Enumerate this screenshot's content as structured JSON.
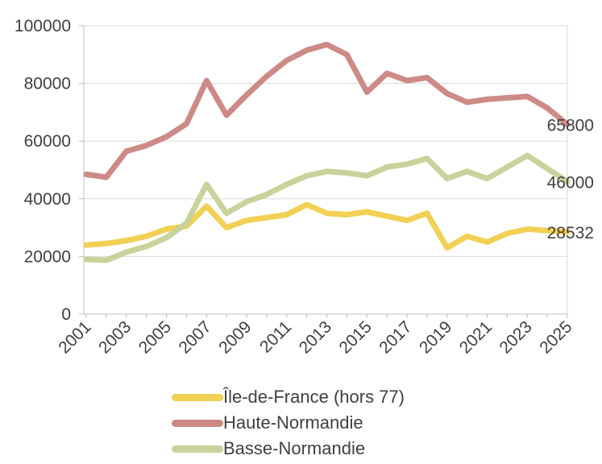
{
  "chart_data": {
    "type": "line",
    "x": [
      2001,
      2002,
      2003,
      2004,
      2005,
      2006,
      2007,
      2008,
      2009,
      2010,
      2011,
      2012,
      2013,
      2014,
      2015,
      2016,
      2017,
      2018,
      2019,
      2020,
      2021,
      2022,
      2023,
      2024,
      2025
    ],
    "series": [
      {
        "name": "Île-de-France (hors 77)",
        "color": "#F2D054",
        "end_label": "28532",
        "values": [
          24000,
          24500,
          25500,
          27000,
          29500,
          30500,
          37500,
          30000,
          32500,
          33500,
          34500,
          38000,
          35000,
          34500,
          35500,
          34000,
          32500,
          35000,
          23000,
          27000,
          25000,
          28000,
          29500,
          29000,
          28532
        ]
      },
      {
        "name": "Haute-Normandie",
        "color": "#CD8A86",
        "end_label": "65800",
        "values": [
          48500,
          47500,
          56500,
          58500,
          61500,
          66000,
          81000,
          69000,
          76000,
          82500,
          88000,
          91500,
          93500,
          90000,
          77000,
          83500,
          81000,
          82000,
          76500,
          73500,
          74500,
          75000,
          75500,
          71500,
          65800
        ]
      },
      {
        "name": "Basse-Normandie",
        "color": "#C7D39A",
        "end_label": "46000",
        "values": [
          19000,
          18700,
          21500,
          23500,
          26500,
          31500,
          45000,
          35000,
          39000,
          41500,
          45000,
          48000,
          49500,
          49000,
          48000,
          51000,
          52000,
          54000,
          47000,
          49500,
          47000,
          51000,
          55000,
          50500,
          46000
        ]
      }
    ],
    "title": "",
    "xlabel": "",
    "ylabel": "",
    "ylim": [
      0,
      100000
    ],
    "y_ticks": [
      "0",
      "20000",
      "40000",
      "60000",
      "80000",
      "100000"
    ],
    "x_tick_labels": [
      "2001",
      "2003",
      "2005",
      "2007",
      "2009",
      "2011",
      "2013",
      "2015",
      "2017",
      "2019",
      "2021",
      "2023",
      "2025"
    ],
    "grid": true,
    "legend_position": "bottom"
  },
  "colors": {
    "gridline": "#D9D9D9",
    "axis": "#BFBFBF",
    "tick_text": "#404040",
    "data_label_text": "#404040",
    "background": "#FFFFFF"
  }
}
